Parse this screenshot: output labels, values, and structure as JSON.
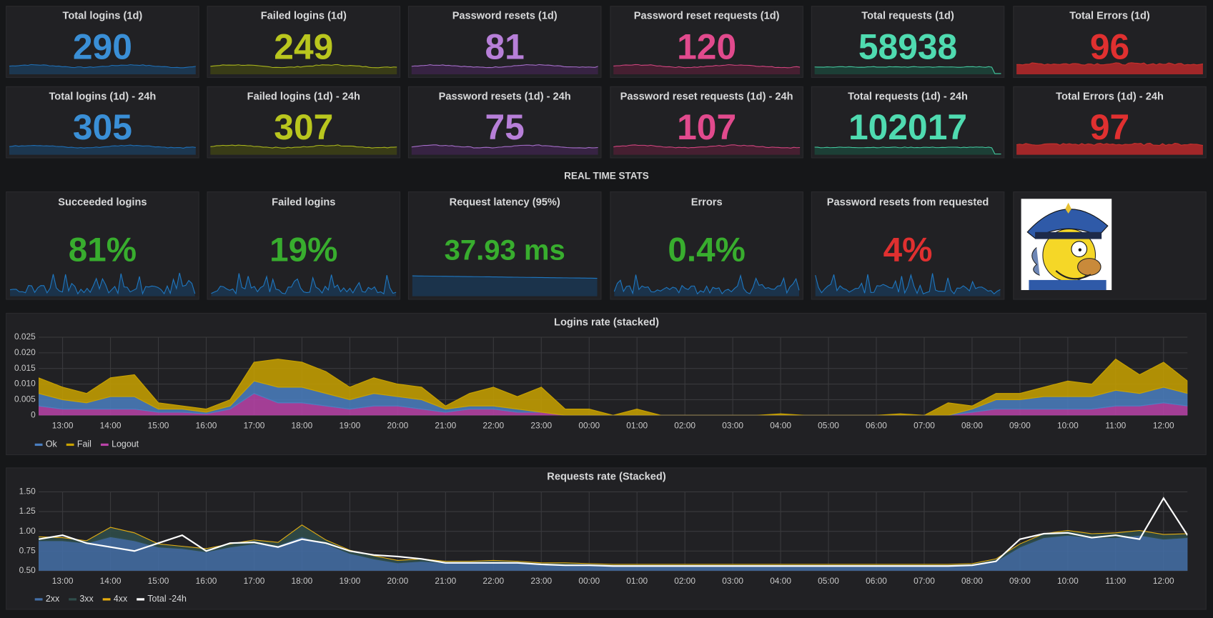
{
  "stats_row1": [
    {
      "title": "Total logins (1d)",
      "value": 290
    },
    {
      "title": "Failed logins (1d)",
      "value": 249
    },
    {
      "title": "Password resets (1d)",
      "value": 81
    },
    {
      "title": "Password reset requests (1d)",
      "value": 120
    },
    {
      "title": "Total requests (1d)",
      "value": 58938
    },
    {
      "title": "Total Errors (1d)",
      "value": 96
    }
  ],
  "stats_row2": [
    {
      "title": "Total logins (1d) - 24h",
      "value": 305
    },
    {
      "title": "Failed logins (1d) - 24h",
      "value": 307
    },
    {
      "title": "Password resets (1d) - 24h",
      "value": 75
    },
    {
      "title": "Password reset requests (1d) - 24h",
      "value": 107
    },
    {
      "title": "Total requests (1d) - 24h",
      "value": 102017
    },
    {
      "title": "Total Errors (1d) - 24h",
      "value": 97
    }
  ],
  "section_title": "REAL TIME STATS",
  "realtime": [
    {
      "title": "Succeeded logins",
      "value": "81%"
    },
    {
      "title": "Failed logins",
      "value": "19%"
    },
    {
      "title": "Request latency (95%)",
      "value": "37.93 ms"
    },
    {
      "title": "Errors",
      "value": "0.4%"
    },
    {
      "title": "Password resets from requested",
      "value": "4%"
    }
  ],
  "chart_data": [
    {
      "type": "area",
      "stacked": true,
      "title": "Logins rate (stacked)",
      "grid": true,
      "x": [
        12.5,
        13,
        13.5,
        14,
        14.5,
        15,
        15.5,
        16,
        16.5,
        17,
        17.5,
        18,
        18.5,
        19,
        19.5,
        20,
        20.5,
        21,
        21.5,
        22,
        22.5,
        23,
        23.5,
        24,
        24.5,
        25,
        25.5,
        26,
        26.5,
        27,
        27.5,
        28,
        28.5,
        29,
        29.5,
        30,
        30.5,
        31,
        31.5,
        32,
        32.5,
        33,
        33.5,
        34,
        34.5,
        35,
        35.5,
        36,
        36.5
      ],
      "xlim": [
        12.5,
        36.5
      ],
      "xticks": [
        {
          "value": 13,
          "label": "13:00"
        },
        {
          "value": 14,
          "label": "14:00"
        },
        {
          "value": 15,
          "label": "15:00"
        },
        {
          "value": 16,
          "label": "16:00"
        },
        {
          "value": 17,
          "label": "17:00"
        },
        {
          "value": 18,
          "label": "18:00"
        },
        {
          "value": 19,
          "label": "19:00"
        },
        {
          "value": 20,
          "label": "20:00"
        },
        {
          "value": 21,
          "label": "21:00"
        },
        {
          "value": 22,
          "label": "22:00"
        },
        {
          "value": 23,
          "label": "23:00"
        },
        {
          "value": 24,
          "label": "00:00"
        },
        {
          "value": 25,
          "label": "01:00"
        },
        {
          "value": 26,
          "label": "02:00"
        },
        {
          "value": 27,
          "label": "03:00"
        },
        {
          "value": 28,
          "label": "04:00"
        },
        {
          "value": 29,
          "label": "05:00"
        },
        {
          "value": 30,
          "label": "06:00"
        },
        {
          "value": 31,
          "label": "07:00"
        },
        {
          "value": 32,
          "label": "08:00"
        },
        {
          "value": 33,
          "label": "09:00"
        },
        {
          "value": 34,
          "label": "10:00"
        },
        {
          "value": 35,
          "label": "11:00"
        },
        {
          "value": 36,
          "label": "12:00"
        }
      ],
      "ylim": [
        0,
        0.025
      ],
      "yticks": [
        0,
        0.005,
        {
          "value": 0.01,
          "label": "0.010"
        },
        0.015,
        {
          "value": 0.02,
          "label": "0.020"
        },
        0.025
      ],
      "series": [
        {
          "name": "Ok",
          "color": "#4a7fc1",
          "values": [
            0.004,
            0.003,
            0.002,
            0.004,
            0.004,
            0.001,
            0.001,
            0.0005,
            0.001,
            0.004,
            0.005,
            0.005,
            0.004,
            0.003,
            0.004,
            0.003,
            0.003,
            0.001,
            0.001,
            0.001,
            0.001,
            0,
            0,
            0,
            0,
            0,
            0,
            0,
            0,
            0,
            0,
            0,
            0,
            0,
            0,
            0,
            0,
            0,
            0,
            0.001,
            0.003,
            0.003,
            0.004,
            0.004,
            0.004,
            0.005,
            0.004,
            0.005,
            0.004
          ]
        },
        {
          "name": "Fail",
          "color": "#c9a200",
          "values": [
            0.005,
            0.004,
            0.003,
            0.006,
            0.007,
            0.002,
            0.001,
            0.001,
            0.002,
            0.006,
            0.009,
            0.008,
            0.007,
            0.004,
            0.005,
            0.004,
            0.004,
            0.001,
            0.004,
            0.006,
            0.004,
            0.008,
            0.002,
            0.002,
            0,
            0.002,
            0,
            0,
            0,
            0,
            0,
            0.0005,
            0,
            0,
            0,
            0,
            0.0005,
            0,
            0.004,
            0.001,
            0.002,
            0.002,
            0.003,
            0.005,
            0.004,
            0.01,
            0.006,
            0.008,
            0.004
          ]
        },
        {
          "name": "Logout",
          "color": "#ba43a9",
          "values": [
            0.003,
            0.002,
            0.002,
            0.002,
            0.002,
            0.001,
            0.001,
            0.0005,
            0.002,
            0.007,
            0.004,
            0.004,
            0.003,
            0.002,
            0.003,
            0.003,
            0.002,
            0.001,
            0.002,
            0.002,
            0.001,
            0.001,
            0,
            0,
            0,
            0,
            0,
            0,
            0,
            0,
            0,
            0,
            0,
            0,
            0,
            0,
            0,
            0,
            0,
            0.001,
            0.002,
            0.002,
            0.002,
            0.002,
            0.002,
            0.003,
            0.003,
            0.004,
            0.003
          ]
        }
      ]
    },
    {
      "type": "area",
      "stacked": true,
      "title": "Requests rate (Stacked)",
      "grid": true,
      "x": [
        12.5,
        13,
        13.5,
        14,
        14.5,
        15,
        15.5,
        16,
        16.5,
        17,
        17.5,
        18,
        18.5,
        19,
        19.5,
        20,
        20.5,
        21,
        21.5,
        22,
        22.5,
        23,
        23.5,
        24,
        24.5,
        25,
        25.5,
        26,
        26.5,
        27,
        27.5,
        28,
        28.5,
        29,
        29.5,
        30,
        30.5,
        31,
        31.5,
        32,
        32.5,
        33,
        33.5,
        34,
        34.5,
        35,
        35.5,
        36,
        36.5
      ],
      "xlim": [
        12.5,
        36.5
      ],
      "xticks": [
        {
          "value": 13,
          "label": "13:00"
        },
        {
          "value": 14,
          "label": "14:00"
        },
        {
          "value": 15,
          "label": "15:00"
        },
        {
          "value": 16,
          "label": "16:00"
        },
        {
          "value": 17,
          "label": "17:00"
        },
        {
          "value": 18,
          "label": "18:00"
        },
        {
          "value": 19,
          "label": "19:00"
        },
        {
          "value": 20,
          "label": "20:00"
        },
        {
          "value": 21,
          "label": "21:00"
        },
        {
          "value": 22,
          "label": "22:00"
        },
        {
          "value": 23,
          "label": "23:00"
        },
        {
          "value": 24,
          "label": "00:00"
        },
        {
          "value": 25,
          "label": "01:00"
        },
        {
          "value": 26,
          "label": "02:00"
        },
        {
          "value": 27,
          "label": "03:00"
        },
        {
          "value": 28,
          "label": "04:00"
        },
        {
          "value": 29,
          "label": "05:00"
        },
        {
          "value": 30,
          "label": "06:00"
        },
        {
          "value": 31,
          "label": "07:00"
        },
        {
          "value": 32,
          "label": "08:00"
        },
        {
          "value": 33,
          "label": "09:00"
        },
        {
          "value": 34,
          "label": "10:00"
        },
        {
          "value": 35,
          "label": "11:00"
        },
        {
          "value": 36,
          "label": "12:00"
        }
      ],
      "ylim": [
        0.5,
        1.5
      ],
      "yticks": [
        {
          "value": 0.5,
          "label": "0.50"
        },
        0.75,
        {
          "value": 1,
          "label": "1.00"
        },
        1.25,
        {
          "value": 1.5,
          "label": "1.50"
        }
      ],
      "series": [
        {
          "name": "2xx",
          "color": "#4470a8",
          "values": [
            0.88,
            0.88,
            0.85,
            0.93,
            0.88,
            0.8,
            0.78,
            0.74,
            0.8,
            0.84,
            0.82,
            0.93,
            0.84,
            0.72,
            0.65,
            0.6,
            0.62,
            0.6,
            0.6,
            0.6,
            0.6,
            0.58,
            0.58,
            0.57,
            0.56,
            0.56,
            0.56,
            0.56,
            0.56,
            0.56,
            0.56,
            0.56,
            0.56,
            0.56,
            0.56,
            0.56,
            0.56,
            0.56,
            0.56,
            0.57,
            0.62,
            0.8,
            0.92,
            0.95,
            0.92,
            0.92,
            0.95,
            0.9,
            0.92
          ]
        },
        {
          "name": "3xx",
          "color": "#2f4d4b",
          "values": [
            0.05,
            0.04,
            0.03,
            0.12,
            0.1,
            0.04,
            0.03,
            0.04,
            0.04,
            0.05,
            0.04,
            0.15,
            0.05,
            0.04,
            0.04,
            0.03,
            0.03,
            0.02,
            0.02,
            0.03,
            0.02,
            0.02,
            0.02,
            0.02,
            0.02,
            0.02,
            0.02,
            0.02,
            0.02,
            0.02,
            0.02,
            0.02,
            0.02,
            0.02,
            0.02,
            0.02,
            0.02,
            0.02,
            0.02,
            0.02,
            0.03,
            0.04,
            0.05,
            0.06,
            0.05,
            0.06,
            0.06,
            0.06,
            0.05
          ]
        },
        {
          "name": "4xx",
          "color": "#e5ac0e",
          "values": [
            0,
            0,
            0,
            0,
            0,
            0,
            0,
            0,
            0,
            0,
            0,
            0,
            0,
            0,
            0,
            0,
            0,
            0,
            0,
            0,
            0,
            0,
            0,
            0,
            0,
            0,
            0,
            0,
            0,
            0,
            0,
            0,
            0,
            0,
            0,
            0,
            0,
            0,
            0,
            0,
            0,
            0,
            0,
            0,
            0,
            0,
            0,
            0,
            0
          ]
        },
        {
          "name": "Total -24h",
          "color": "#ffffff",
          "stack": false,
          "values": [
            0.9,
            0.95,
            0.85,
            0.8,
            0.75,
            0.85,
            0.95,
            0.75,
            0.85,
            0.86,
            0.8,
            0.9,
            0.85,
            0.75,
            0.7,
            0.68,
            0.65,
            0.6,
            0.6,
            0.6,
            0.6,
            0.58,
            0.57,
            0.57,
            0.56,
            0.56,
            0.56,
            0.56,
            0.56,
            0.56,
            0.56,
            0.56,
            0.56,
            0.56,
            0.56,
            0.56,
            0.56,
            0.56,
            0.56,
            0.57,
            0.62,
            0.9,
            0.97,
            0.98,
            0.92,
            0.95,
            0.9,
            1.42,
            0.95
          ]
        }
      ]
    }
  ]
}
